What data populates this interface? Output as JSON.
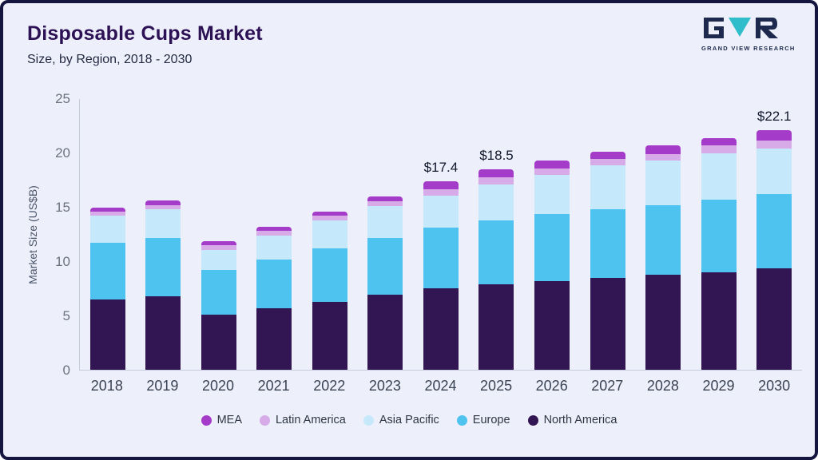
{
  "header": {
    "title": "Disposable Cups Market",
    "subtitle": "Size, by Region, 2018 - 2030",
    "logo_text": "GRAND VIEW RESEARCH"
  },
  "colors": {
    "background": "#edf0fa",
    "frame_border": "#15163f",
    "title": "#2d1155",
    "axis_line": "#c6ccdb"
  },
  "chart_data": {
    "type": "bar",
    "stacked": true,
    "title": "Disposable Cups Market Size, by Region, 2018 - 2030",
    "xlabel": "",
    "ylabel": "Market Size (US$B)",
    "ylim": [
      0,
      25
    ],
    "y_ticks": [
      0,
      5,
      10,
      15,
      20,
      25
    ],
    "grid": false,
    "legend_position": "bottom",
    "categories": [
      "2018",
      "2019",
      "2020",
      "2021",
      "2022",
      "2023",
      "2024",
      "2025",
      "2026",
      "2027",
      "2028",
      "2029",
      "2030"
    ],
    "series": [
      {
        "name": "North America",
        "color": "#321653",
        "values": [
          6.5,
          6.8,
          5.1,
          5.7,
          6.3,
          6.9,
          7.5,
          7.9,
          8.2,
          8.5,
          8.8,
          9.0,
          9.4
        ]
      },
      {
        "name": "Europe",
        "color": "#4ec3f0",
        "values": [
          5.2,
          5.4,
          4.1,
          4.5,
          4.9,
          5.3,
          5.6,
          5.9,
          6.2,
          6.3,
          6.4,
          6.7,
          6.8
        ]
      },
      {
        "name": "Asia Pacific",
        "color": "#c5e8fa",
        "values": [
          2.5,
          2.6,
          1.9,
          2.2,
          2.6,
          2.9,
          3.0,
          3.3,
          3.6,
          4.1,
          4.1,
          4.3,
          4.2
        ]
      },
      {
        "name": "Latin America",
        "color": "#d7abe8",
        "values": [
          0.4,
          0.4,
          0.4,
          0.4,
          0.4,
          0.45,
          0.6,
          0.7,
          0.6,
          0.6,
          0.6,
          0.7,
          0.8
        ]
      },
      {
        "name": "MEA",
        "color": "#a43bc9",
        "values": [
          0.4,
          0.4,
          0.4,
          0.4,
          0.4,
          0.45,
          0.7,
          0.7,
          0.7,
          0.6,
          0.8,
          0.7,
          0.9
        ]
      }
    ],
    "totals": [
      15.0,
      15.6,
      11.9,
      13.2,
      14.6,
      16.0,
      17.4,
      18.5,
      19.3,
      20.1,
      20.7,
      21.4,
      22.1
    ],
    "legend_order": [
      "MEA",
      "Latin America",
      "Asia Pacific",
      "Europe",
      "North America"
    ],
    "annotations": [
      {
        "category": "2024",
        "label": "$17.4"
      },
      {
        "category": "2025",
        "label": "$18.5"
      },
      {
        "category": "2030",
        "label": "$22.1"
      }
    ]
  }
}
